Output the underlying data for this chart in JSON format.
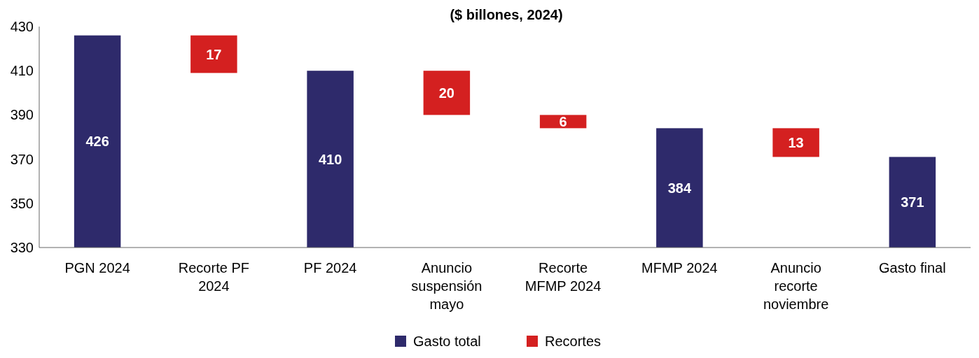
{
  "chart_data": {
    "type": "bar",
    "title": "($ billones, 2024)",
    "categories": [
      "PGN 2024",
      "Recorte PF 2024",
      "PF 2024",
      "Anuncio suspensión mayo",
      "Recorte MFMP 2024",
      "MFMP 2024",
      "Anuncio recorte noviembre",
      "Gasto final"
    ],
    "series": [
      {
        "name": "Gasto total",
        "color": "#2e2a6b",
        "values": [
          426,
          null,
          410,
          null,
          null,
          384,
          null,
          371
        ]
      },
      {
        "name": "Recortes",
        "color": "#d42020",
        "values": [
          null,
          17,
          null,
          20,
          6,
          null,
          13,
          null
        ],
        "base": [
          null,
          409,
          null,
          390,
          384,
          null,
          371,
          null
        ]
      }
    ],
    "ylim": [
      330,
      430
    ],
    "yticks": [
      330,
      350,
      370,
      390,
      410,
      430
    ],
    "data_labels": true,
    "legend": "bottom",
    "grid": false
  }
}
